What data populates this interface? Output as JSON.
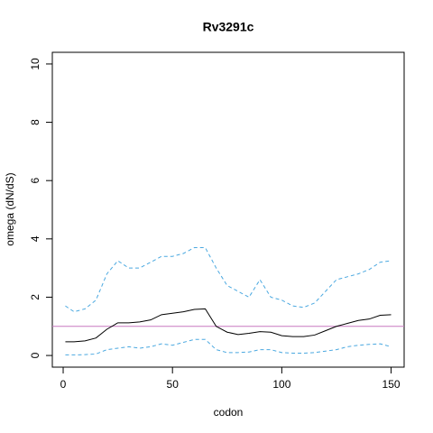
{
  "chart_data": {
    "type": "line",
    "title": "Rv3291c",
    "x_label": "codon",
    "y_label": "omega (dN/dS)",
    "x": [
      1,
      5,
      10,
      15,
      20,
      25,
      30,
      35,
      40,
      45,
      50,
      55,
      60,
      65,
      70,
      75,
      80,
      85,
      90,
      95,
      100,
      105,
      110,
      115,
      120,
      125,
      130,
      135,
      140,
      145,
      150
    ],
    "series": [
      {
        "color": "#000000",
        "dash": false,
        "values": [
          0.47,
          0.47,
          0.5,
          0.6,
          0.9,
          1.12,
          1.12,
          1.15,
          1.22,
          1.4,
          1.45,
          1.5,
          1.58,
          1.6,
          1.0,
          0.8,
          0.72,
          0.76,
          0.82,
          0.8,
          0.68,
          0.65,
          0.65,
          0.7,
          0.85,
          1.0,
          1.1,
          1.2,
          1.25,
          1.38,
          1.4
        ]
      },
      {
        "color": "#4aa8e0",
        "dash": true,
        "values": [
          1.7,
          1.5,
          1.6,
          1.9,
          2.8,
          3.25,
          3.0,
          3.0,
          3.2,
          3.4,
          3.4,
          3.5,
          3.7,
          3.7,
          3.0,
          2.4,
          2.2,
          2.0,
          2.6,
          2.0,
          1.9,
          1.7,
          1.65,
          1.8,
          2.2,
          2.6,
          2.7,
          2.8,
          2.95,
          3.2,
          3.25
        ]
      },
      {
        "color": "#4aa8e0",
        "dash": true,
        "values": [
          0.02,
          0.02,
          0.03,
          0.05,
          0.2,
          0.25,
          0.3,
          0.25,
          0.3,
          0.4,
          0.35,
          0.45,
          0.55,
          0.55,
          0.2,
          0.1,
          0.1,
          0.12,
          0.2,
          0.2,
          0.1,
          0.08,
          0.08,
          0.1,
          0.15,
          0.2,
          0.3,
          0.35,
          0.38,
          0.4,
          0.3
        ]
      }
    ],
    "hline": 1,
    "hline_color": "#c878c0",
    "xlim": [
      -4.96,
      155.96
    ],
    "xticks": [
      0,
      50,
      100,
      150
    ],
    "ylim": [
      -0.4,
      10.4
    ],
    "yticks": [
      0,
      2,
      4,
      6,
      8,
      10
    ]
  }
}
